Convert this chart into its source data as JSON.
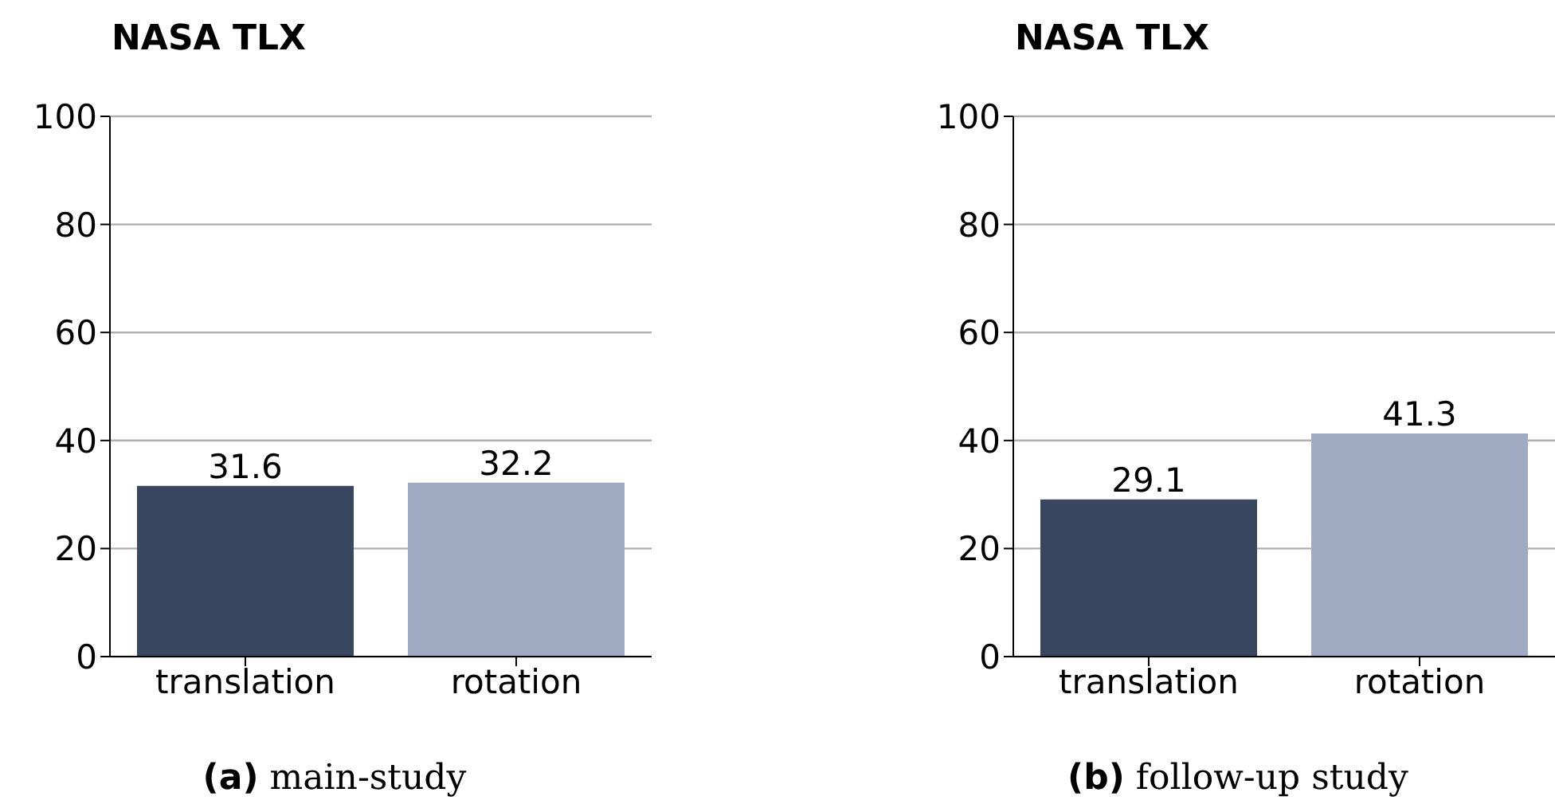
{
  "chart_data": [
    {
      "type": "bar",
      "title": "NASA TLX",
      "categories": [
        "translation",
        "rotation"
      ],
      "colors": [
        "#38475f",
        "#a0aac2"
      ],
      "values": [
        31.6,
        32.2
      ],
      "data_labels": true,
      "ylim": [
        0,
        100
      ],
      "yticks": [
        0,
        20,
        40,
        60,
        80,
        100
      ],
      "grid": "y",
      "annotations": [
        "(a) main-study"
      ]
    },
    {
      "type": "bar",
      "title": "NASA TLX",
      "categories": [
        "translation",
        "rotation"
      ],
      "colors": [
        "#38475f",
        "#a0aac2"
      ],
      "values": [
        29.1,
        41.3
      ],
      "data_labels": true,
      "ylim": [
        0,
        100
      ],
      "yticks": [
        0,
        20,
        40,
        60,
        80,
        100
      ],
      "grid": "y",
      "annotations": [
        "(b) follow-up study"
      ]
    }
  ]
}
